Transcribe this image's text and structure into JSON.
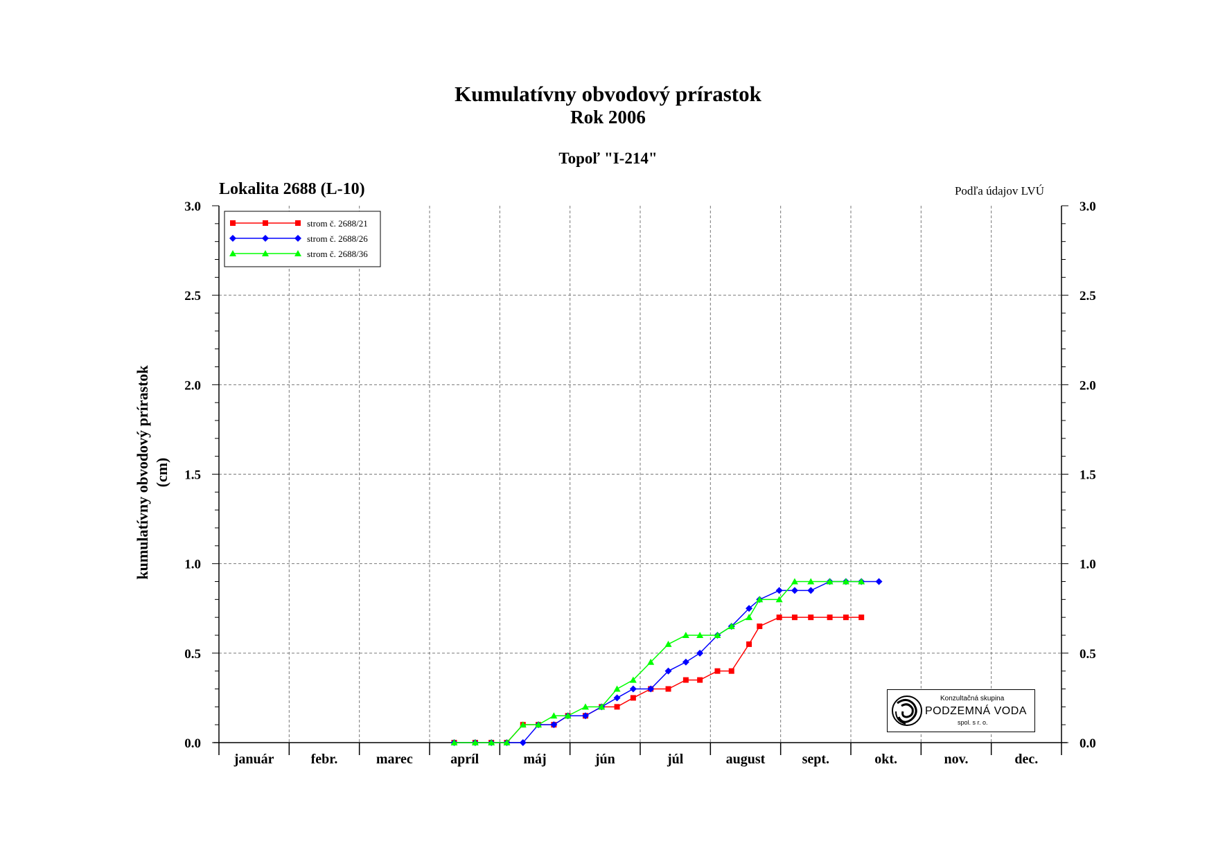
{
  "title": "Kumulatívny obvodový prírastok",
  "subtitle": "Rok 2006",
  "tree_type": "Topoľ \"I-214\"",
  "location": "Lokalita 2688 (L-10)",
  "source_note": "Podľa údajov LVÚ",
  "ylabel_line1": "kumulatívny obvodový prírastok",
  "ylabel_line2": "(cm)",
  "logo": {
    "line1": "Konzultačná skupina",
    "line2": "PODZEMNÁ VODA",
    "line3": "spol. s r. o."
  },
  "chart_data": {
    "type": "line",
    "title": "Kumulatívny obvodový prírastok",
    "subtitle": "Rok 2006",
    "ylabel": "kumulatívny obvodový prírastok (cm)",
    "xlabel": "",
    "xlim": [
      0,
      12
    ],
    "ylim": [
      0,
      3
    ],
    "yticks": [
      "0.0",
      "0.5",
      "1.0",
      "1.5",
      "2.0",
      "2.5",
      "3.0"
    ],
    "months": [
      "január",
      "febr.",
      "marec",
      "apríl",
      "máj",
      "jún",
      "júl",
      "august",
      "sept.",
      "okt.",
      "nov.",
      "dec."
    ],
    "grid": true,
    "legend_position": "top-left",
    "series": [
      {
        "name": "strom č. 2688/21",
        "color": "#ff0000",
        "marker": "square",
        "points": [
          [
            3.35,
            0.0
          ],
          [
            3.65,
            0.0
          ],
          [
            3.88,
            0.0
          ],
          [
            4.1,
            0.0
          ],
          [
            4.33,
            0.1
          ],
          [
            4.55,
            0.1
          ],
          [
            4.77,
            0.1
          ],
          [
            4.97,
            0.15
          ],
          [
            5.22,
            0.15
          ],
          [
            5.45,
            0.2
          ],
          [
            5.67,
            0.2
          ],
          [
            5.9,
            0.25
          ],
          [
            6.15,
            0.3
          ],
          [
            6.4,
            0.3
          ],
          [
            6.65,
            0.35
          ],
          [
            6.85,
            0.35
          ],
          [
            7.1,
            0.4
          ],
          [
            7.3,
            0.4
          ],
          [
            7.55,
            0.55
          ],
          [
            7.7,
            0.65
          ],
          [
            7.98,
            0.7
          ],
          [
            8.2,
            0.7
          ],
          [
            8.43,
            0.7
          ],
          [
            8.7,
            0.7
          ],
          [
            8.93,
            0.7
          ],
          [
            9.15,
            0.7
          ]
        ]
      },
      {
        "name": "strom č. 2688/26",
        "color": "#0000ff",
        "marker": "diamond",
        "points": [
          [
            3.35,
            0.0
          ],
          [
            3.65,
            0.0
          ],
          [
            3.88,
            0.0
          ],
          [
            4.1,
            0.0
          ],
          [
            4.33,
            0.0
          ],
          [
            4.55,
            0.1
          ],
          [
            4.77,
            0.1
          ],
          [
            4.97,
            0.15
          ],
          [
            5.22,
            0.15
          ],
          [
            5.45,
            0.2
          ],
          [
            5.67,
            0.25
          ],
          [
            5.9,
            0.3
          ],
          [
            6.15,
            0.3
          ],
          [
            6.4,
            0.4
          ],
          [
            6.65,
            0.45
          ],
          [
            6.85,
            0.5
          ],
          [
            7.1,
            0.6
          ],
          [
            7.3,
            0.65
          ],
          [
            7.55,
            0.75
          ],
          [
            7.7,
            0.8
          ],
          [
            7.98,
            0.85
          ],
          [
            8.2,
            0.85
          ],
          [
            8.43,
            0.85
          ],
          [
            8.7,
            0.9
          ],
          [
            8.93,
            0.9
          ],
          [
            9.15,
            0.9
          ],
          [
            9.4,
            0.9
          ]
        ]
      },
      {
        "name": "strom č. 2688/36",
        "color": "#00ff00",
        "marker": "triangle",
        "points": [
          [
            3.35,
            0.0
          ],
          [
            3.65,
            0.0
          ],
          [
            3.88,
            0.0
          ],
          [
            4.1,
            0.0
          ],
          [
            4.33,
            0.1
          ],
          [
            4.55,
            0.1
          ],
          [
            4.77,
            0.15
          ],
          [
            4.97,
            0.15
          ],
          [
            5.22,
            0.2
          ],
          [
            5.45,
            0.2
          ],
          [
            5.67,
            0.3
          ],
          [
            5.9,
            0.35
          ],
          [
            6.15,
            0.45
          ],
          [
            6.4,
            0.55
          ],
          [
            6.65,
            0.6
          ],
          [
            6.85,
            0.6
          ],
          [
            7.1,
            0.6
          ],
          [
            7.3,
            0.65
          ],
          [
            7.55,
            0.7
          ],
          [
            7.7,
            0.8
          ],
          [
            7.98,
            0.8
          ],
          [
            8.2,
            0.9
          ],
          [
            8.43,
            0.9
          ],
          [
            8.7,
            0.9
          ],
          [
            8.93,
            0.9
          ],
          [
            9.15,
            0.9
          ]
        ]
      }
    ]
  }
}
